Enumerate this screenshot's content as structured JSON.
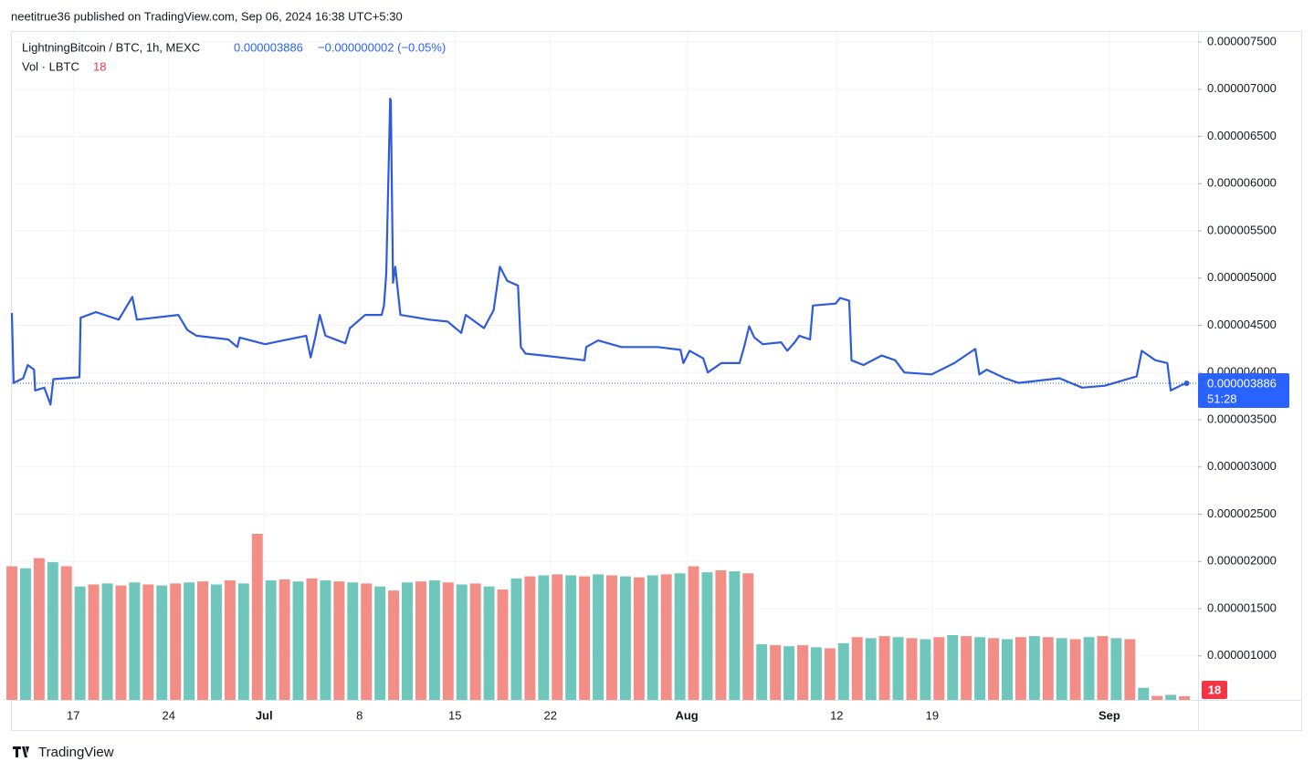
{
  "chart_data": {
    "type": "line",
    "attribution": "neetitrue36 published on TradingView.com, Sep 06, 2024 16:38 UTC+5:30",
    "title": "LightningBitcoin / BTC, 1h, MEXC",
    "change": "−0.000000002 (−0.05%)",
    "last_price": {
      "value": 3.886e-06,
      "label": "0.000003886"
    },
    "countdown": "51:28",
    "volume_label": "Vol · LBTC",
    "footer": "TradingView",
    "grid": true,
    "xlim": [
      "2024-06-12T12:00",
      "2024-09-07T12:00"
    ],
    "xticks": [
      {
        "value": "2024-06-17",
        "label": "17"
      },
      {
        "value": "2024-06-24",
        "label": "24"
      },
      {
        "value": "2024-07-01",
        "label": "Jul"
      },
      {
        "value": "2024-07-08",
        "label": "8"
      },
      {
        "value": "2024-07-15",
        "label": "15"
      },
      {
        "value": "2024-07-22",
        "label": "22"
      },
      {
        "value": "2024-08-01",
        "label": "Aug"
      },
      {
        "value": "2024-08-12",
        "label": "12"
      },
      {
        "value": "2024-08-19",
        "label": "19"
      },
      {
        "value": "2024-09-01",
        "label": "Sep"
      }
    ],
    "ylim": [
      5.34e-07,
      7.606e-06
    ],
    "yticks": [
      {
        "value": 1e-06,
        "label": "0.000001000"
      },
      {
        "value": 1.5e-06,
        "label": "0.000001500"
      },
      {
        "value": 2e-06,
        "label": "0.000002000"
      },
      {
        "value": 2.5e-06,
        "label": "0.000002500"
      },
      {
        "value": 3e-06,
        "label": "0.000003000"
      },
      {
        "value": 3.5e-06,
        "label": "0.000003500"
      },
      {
        "value": 4e-06,
        "label": "0.000004000"
      },
      {
        "value": 4.5e-06,
        "label": "0.000004500"
      },
      {
        "value": 5e-06,
        "label": "0.000005000"
      },
      {
        "value": 5.5e-06,
        "label": "0.000005500"
      },
      {
        "value": 6e-06,
        "label": "0.000006000"
      },
      {
        "value": 6.5e-06,
        "label": "0.000006500"
      },
      {
        "value": 7e-06,
        "label": "0.000007000"
      },
      {
        "value": 7.5e-06,
        "label": "0.000007500"
      }
    ],
    "series": [
      {
        "color": "#2e5bdc",
        "x": [
          "2024-06-12T12:00",
          "2024-06-12T15:00",
          "2024-06-13T08:00",
          "2024-06-13T16:00",
          "2024-06-14T03:00",
          "2024-06-14T05:00",
          "2024-06-14T21:00",
          "2024-06-15T08:00",
          "2024-06-15T13:00",
          "2024-06-17T11:00",
          "2024-06-17T13:00",
          "2024-06-18T16:00",
          "2024-06-20T08:00",
          "2024-06-21T08:00",
          "2024-06-21T16:00",
          "2024-06-24T17:00",
          "2024-06-25T09:00",
          "2024-06-26T01:00",
          "2024-06-28T09:00",
          "2024-06-29T01:00",
          "2024-06-29T05:00",
          "2024-07-01T02:00",
          "2024-07-01T18:00",
          "2024-07-04T02:00",
          "2024-07-04T10:00",
          "2024-07-04T18:00",
          "2024-07-05T02:00",
          "2024-07-05T12:00",
          "2024-07-06T23:00",
          "2024-07-07T07:00",
          "2024-07-08T10:00",
          "2024-07-09T15:00",
          "2024-07-09T19:00",
          "2024-07-09T23:00",
          "2024-07-10T06:00",
          "2024-07-10T07:00",
          "2024-07-10T11:00",
          "2024-07-10T15:00",
          "2024-07-11T00:00",
          "2024-07-13T03:00",
          "2024-07-14T11:00",
          "2024-07-15T11:00",
          "2024-07-15T19:00",
          "2024-07-17T03:00",
          "2024-07-17T20:00",
          "2024-07-18T07:00",
          "2024-07-18T20:00",
          "2024-07-19T15:00",
          "2024-07-19T20:00",
          "2024-07-20T04:00",
          "2024-07-21T12:00",
          "2024-07-24T12:00",
          "2024-07-24T15:00",
          "2024-07-25T12:00",
          "2024-07-27T05:00",
          "2024-07-29T21:00",
          "2024-07-31T13:00",
          "2024-07-31T18:00",
          "2024-08-01T05:00",
          "2024-08-02T05:00",
          "2024-08-02T13:00",
          "2024-08-03T13:00",
          "2024-08-04T21:00",
          "2024-08-05T05:00",
          "2024-08-05T14:00",
          "2024-08-05T23:00",
          "2024-08-06T14:00",
          "2024-08-07T22:00",
          "2024-08-08T09:00",
          "2024-08-08T22:00",
          "2024-08-09T06:00",
          "2024-08-10T01:00",
          "2024-08-10T06:00",
          "2024-08-11T22:00",
          "2024-08-12T06:00",
          "2024-08-12T22:00",
          "2024-08-13T02:00",
          "2024-08-13T23:00",
          "2024-08-15T07:00",
          "2024-08-16T07:00",
          "2024-08-16T23:00",
          "2024-08-18T23:00",
          "2024-08-20T15:00",
          "2024-08-22T04:00",
          "2024-08-22T11:00",
          "2024-08-23T00:00",
          "2024-08-24T08:00",
          "2024-08-25T08:00",
          "2024-08-28T08:00",
          "2024-08-30T00:00",
          "2024-08-31T16:00",
          "2024-09-03T00:00",
          "2024-09-03T09:00",
          "2024-09-04T09:00",
          "2024-09-05T06:00",
          "2024-09-05T12:00",
          "2024-09-06T08:00",
          "2024-09-06T16:00"
        ],
        "values": [
          4.63e-06,
          3.89e-06,
          3.94e-06,
          4.08e-06,
          4.03e-06,
          3.81e-06,
          3.84e-06,
          3.66e-06,
          3.93e-06,
          3.95e-06,
          4.58e-06,
          4.64e-06,
          4.56e-06,
          4.8e-06,
          4.56e-06,
          4.61e-06,
          4.45e-06,
          4.39e-06,
          4.35e-06,
          4.27e-06,
          4.37e-06,
          4.3e-06,
          4.32e-06,
          4.39e-06,
          4.16e-06,
          4.37e-06,
          4.61e-06,
          4.39e-06,
          4.31e-06,
          4.47e-06,
          4.61e-06,
          4.61e-06,
          4.71e-06,
          5.05e-06,
          6.9e-06,
          6.88e-06,
          4.95e-06,
          5.12e-06,
          4.61e-06,
          4.56e-06,
          4.54e-06,
          4.42e-06,
          4.61e-06,
          4.47e-06,
          4.66e-06,
          5.12e-06,
          4.97e-06,
          4.92e-06,
          4.27e-06,
          4.2e-06,
          4.18e-06,
          4.13e-06,
          4.27e-06,
          4.34e-06,
          4.27e-06,
          4.27e-06,
          4.24e-06,
          4.1e-06,
          4.23e-06,
          4.15e-06,
          4e-06,
          4.1e-06,
          4.1e-06,
          4.27e-06,
          4.49e-06,
          4.37e-06,
          4.3e-06,
          4.32e-06,
          4.23e-06,
          4.32e-06,
          4.39e-06,
          4.35e-06,
          4.71e-06,
          4.73e-06,
          4.79e-06,
          4.76e-06,
          4.13e-06,
          4.08e-06,
          4.18e-06,
          4.13e-06,
          4e-06,
          3.98e-06,
          4.1e-06,
          4.25e-06,
          3.98e-06,
          4.03e-06,
          3.94e-06,
          3.89e-06,
          3.94e-06,
          3.84e-06,
          3.86e-06,
          3.96e-06,
          4.23e-06,
          4.13e-06,
          4.1e-06,
          3.81e-06,
          3.87e-06,
          3.886e-06
        ]
      }
    ],
    "volume": {
      "type": "bar",
      "x": [
        "2024-06-12",
        "2024-06-13",
        "2024-06-14",
        "2024-06-15",
        "2024-06-16",
        "2024-06-17",
        "2024-06-18",
        "2024-06-19",
        "2024-06-20",
        "2024-06-21",
        "2024-06-22",
        "2024-06-23",
        "2024-06-24",
        "2024-06-25",
        "2024-06-26",
        "2024-06-27",
        "2024-06-28",
        "2024-06-29",
        "2024-06-30",
        "2024-07-01",
        "2024-07-02",
        "2024-07-03",
        "2024-07-04",
        "2024-07-05",
        "2024-07-06",
        "2024-07-07",
        "2024-07-08",
        "2024-07-09",
        "2024-07-10",
        "2024-07-11",
        "2024-07-12",
        "2024-07-13",
        "2024-07-14",
        "2024-07-15",
        "2024-07-16",
        "2024-07-17",
        "2024-07-18",
        "2024-07-19",
        "2024-07-20",
        "2024-07-21",
        "2024-07-22",
        "2024-07-23",
        "2024-07-24",
        "2024-07-25",
        "2024-07-26",
        "2024-07-27",
        "2024-07-28",
        "2024-07-29",
        "2024-07-30",
        "2024-07-31",
        "2024-08-01",
        "2024-08-02",
        "2024-08-03",
        "2024-08-04",
        "2024-08-05",
        "2024-08-06",
        "2024-08-07",
        "2024-08-08",
        "2024-08-09",
        "2024-08-10",
        "2024-08-11",
        "2024-08-12",
        "2024-08-13",
        "2024-08-14",
        "2024-08-15",
        "2024-08-16",
        "2024-08-17",
        "2024-08-18",
        "2024-08-19",
        "2024-08-20",
        "2024-08-21",
        "2024-08-22",
        "2024-08-23",
        "2024-08-24",
        "2024-08-25",
        "2024-08-26",
        "2024-08-27",
        "2024-08-28",
        "2024-08-29",
        "2024-08-30",
        "2024-08-31",
        "2024-09-01",
        "2024-09-02",
        "2024-09-03",
        "2024-09-04",
        "2024-09-05",
        "2024-09-06"
      ],
      "values": [
        660,
        650,
        700,
        680,
        660,
        560,
        570,
        575,
        565,
        580,
        570,
        565,
        575,
        580,
        585,
        570,
        590,
        575,
        820,
        590,
        595,
        585,
        600,
        590,
        585,
        580,
        575,
        560,
        540,
        580,
        585,
        590,
        580,
        570,
        575,
        560,
        545,
        600,
        610,
        615,
        620,
        615,
        610,
        620,
        615,
        610,
        605,
        615,
        620,
        625,
        660,
        630,
        640,
        635,
        625,
        275,
        270,
        265,
        270,
        260,
        255,
        280,
        310,
        305,
        315,
        310,
        305,
        300,
        310,
        320,
        315,
        310,
        305,
        300,
        310,
        315,
        310,
        305,
        300,
        310,
        315,
        305,
        300,
        60,
        20,
        25,
        18
      ],
      "colors": [
        "#f28e86",
        "#6fc7bb",
        "#f28e86",
        "#6fc7bb",
        "#f28e86",
        "#6fc7bb",
        "#f28e86",
        "#6fc7bb",
        "#f28e86",
        "#6fc7bb",
        "#f28e86",
        "#6fc7bb",
        "#f28e86",
        "#6fc7bb",
        "#f28e86",
        "#6fc7bb",
        "#f28e86",
        "#6fc7bb",
        "#f28e86",
        "#6fc7bb",
        "#f28e86",
        "#6fc7bb",
        "#f28e86",
        "#6fc7bb",
        "#f28e86",
        "#6fc7bb",
        "#f28e86",
        "#6fc7bb",
        "#f28e86",
        "#6fc7bb",
        "#f28e86",
        "#6fc7bb",
        "#f28e86",
        "#6fc7bb",
        "#f28e86",
        "#6fc7bb",
        "#f28e86",
        "#6fc7bb",
        "#f28e86",
        "#6fc7bb",
        "#f28e86",
        "#6fc7bb",
        "#f28e86",
        "#6fc7bb",
        "#f28e86",
        "#6fc7bb",
        "#f28e86",
        "#6fc7bb",
        "#f28e86",
        "#6fc7bb",
        "#f28e86",
        "#6fc7bb",
        "#f28e86",
        "#6fc7bb",
        "#f28e86",
        "#6fc7bb",
        "#f28e86",
        "#6fc7bb",
        "#f28e86",
        "#6fc7bb",
        "#f28e86",
        "#6fc7bb",
        "#f28e86",
        "#6fc7bb",
        "#f28e86",
        "#6fc7bb",
        "#f28e86",
        "#6fc7bb",
        "#f28e86",
        "#6fc7bb",
        "#f28e86",
        "#6fc7bb",
        "#f28e86",
        "#6fc7bb",
        "#f28e86",
        "#6fc7bb",
        "#f28e86",
        "#6fc7bb",
        "#f28e86",
        "#6fc7bb",
        "#f28e86",
        "#6fc7bb",
        "#f28e86",
        "#6fc7bb",
        "#f28e86",
        "#6fc7bb",
        "#f28e86"
      ]
    }
  }
}
